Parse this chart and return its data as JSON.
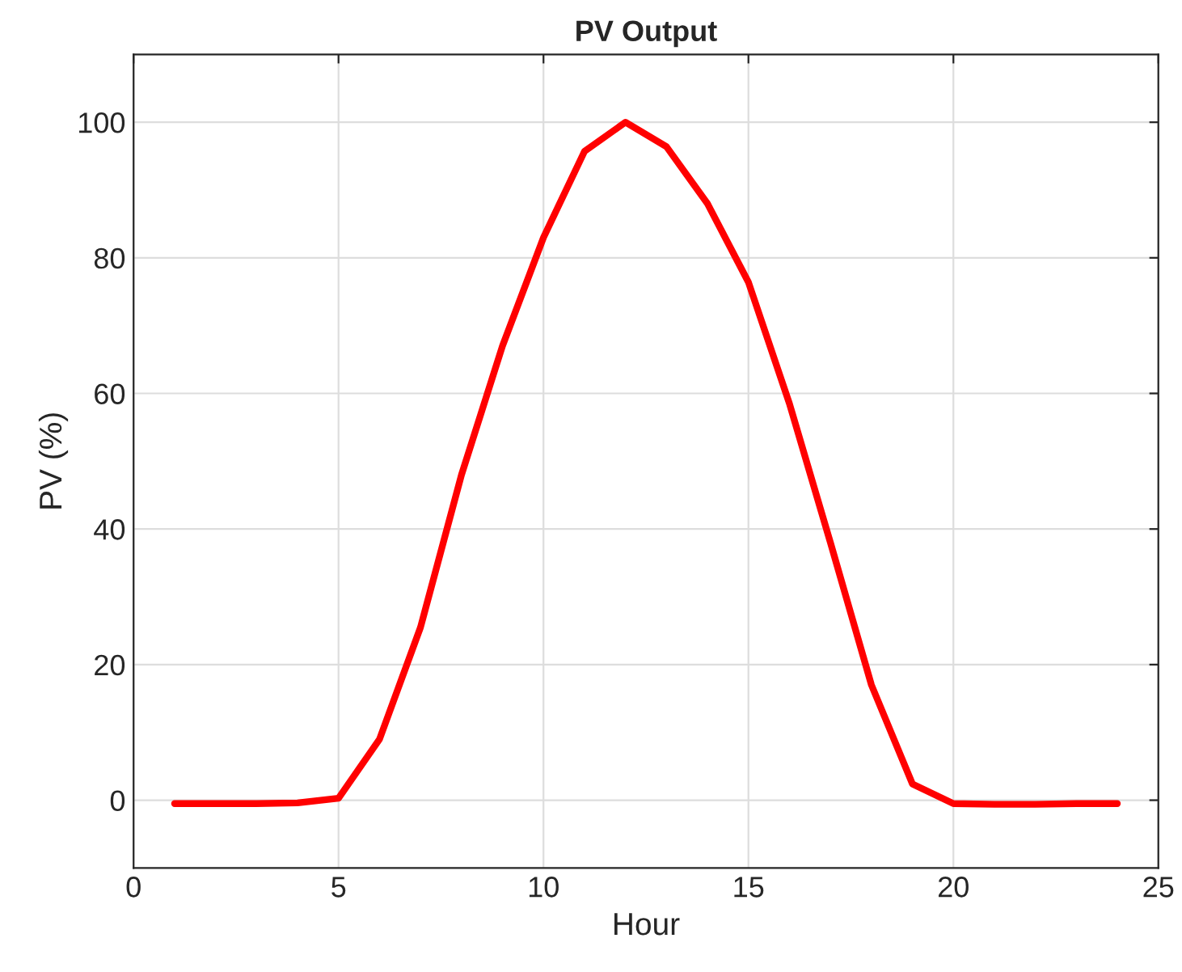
{
  "chart_data": {
    "type": "line",
    "title": "PV Output",
    "xlabel": "Hour",
    "ylabel": "PV (%)",
    "x": [
      1,
      2,
      3,
      4,
      5,
      6,
      7,
      8,
      9,
      10,
      11,
      12,
      13,
      14,
      15,
      16,
      17,
      18,
      19,
      20,
      21,
      22,
      23,
      24
    ],
    "series": [
      {
        "color": "#ff0000",
        "values": [
          -0.5,
          -0.5,
          -0.5,
          -0.4,
          0.3,
          9,
          25.5,
          48,
          67,
          83,
          95.7,
          100,
          96.4,
          88,
          76.4,
          58.5,
          38,
          17,
          2.4,
          -0.5,
          -0.6,
          -0.6,
          -0.5,
          -0.5
        ]
      }
    ],
    "xlim": [
      0,
      25
    ],
    "xticks": [
      0,
      5,
      10,
      15,
      20,
      25
    ],
    "ylim": [
      -10,
      110
    ],
    "yticks": [
      0,
      20,
      40,
      60,
      80,
      100
    ],
    "grid": true,
    "line_style": "solid",
    "marker": "none"
  }
}
